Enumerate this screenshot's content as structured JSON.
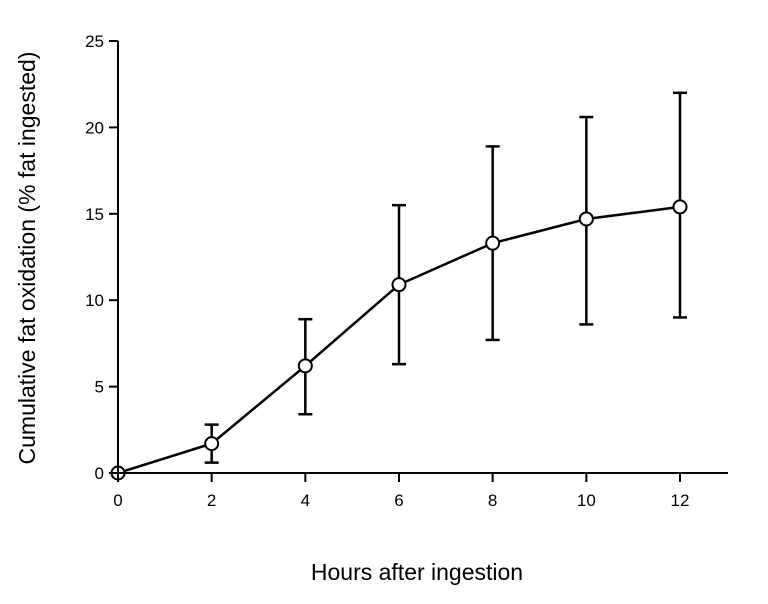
{
  "chart_data": {
    "type": "line",
    "title": "",
    "xlabel": "Hours after ingestion",
    "ylabel": "Cumulative fat oxidation (% fat ingested)",
    "xlim": [
      0,
      13
    ],
    "ylim": [
      0,
      25
    ],
    "x_ticks": [
      0,
      2,
      4,
      6,
      8,
      10,
      12
    ],
    "y_ticks": [
      0,
      5,
      10,
      15,
      20,
      25
    ],
    "x_tick_labels": [
      "0",
      "2",
      "4",
      "6",
      "8",
      "10",
      "12"
    ],
    "y_tick_labels": [
      "0",
      "5",
      "10",
      "15",
      "20",
      "25"
    ],
    "grid": false,
    "legend": "none",
    "series": [
      {
        "x": [
          0,
          2,
          4,
          6,
          8,
          10,
          12
        ],
        "y": [
          0,
          1.7,
          6.2,
          10.9,
          13.3,
          14.7,
          15.4
        ],
        "error_upper": [
          0,
          2.8,
          8.9,
          15.5,
          18.9,
          20.6,
          22.0
        ],
        "error_lower": [
          0,
          0.6,
          3.4,
          6.3,
          7.7,
          8.6,
          9.0
        ],
        "marker": "open-circle",
        "color": "#000000"
      }
    ]
  }
}
